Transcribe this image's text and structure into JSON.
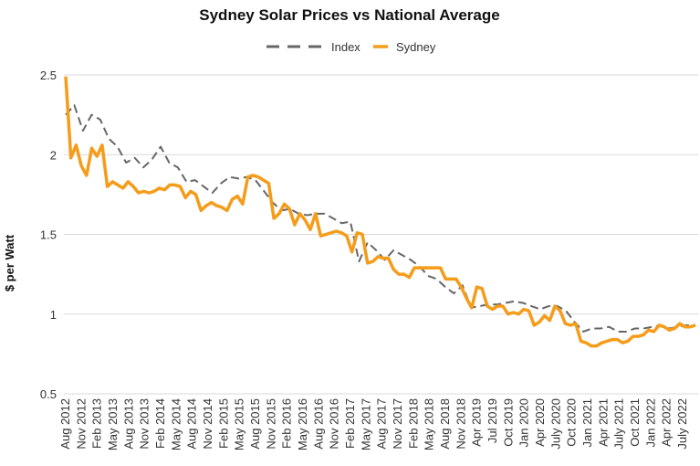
{
  "chart_data": {
    "type": "line",
    "title": "Sydney Solar Prices vs National Average",
    "xlabel": "",
    "ylabel": "$ per Watt",
    "ylim": [
      0.5,
      2.5
    ],
    "yticks": [
      "0.5",
      "1",
      "1.5",
      "2",
      "2.5"
    ],
    "grid": true,
    "legend_position": "top-center",
    "x_ticks": [
      "Aug 2012",
      "Nov 2012",
      "Feb 2013",
      "May 2013",
      "Aug 2013",
      "Nov 2013",
      "Feb 2014",
      "May 2014",
      "Aug 2014",
      "Nov 2014",
      "Feb 2015",
      "May 2015",
      "Aug 2015",
      "Nov 2015",
      "Feb 2016",
      "May 2016",
      "Aug 2016",
      "Nov 2016",
      "Feb 2017",
      "May 2017",
      "Aug 2017",
      "Nov 2017",
      "Feb 2018",
      "May 2018",
      "Aug 2018",
      "Nov 2018",
      "Apr 2019",
      "Jul 2019",
      "Oct 2019",
      "Jan 2020",
      "Apr 2020",
      "July 2020",
      "Oct 2020",
      "Jan 2021",
      "Apr 2021",
      "July 2021",
      "Oct 2021",
      "Jan 2022",
      "Apr 2022",
      "July 2022"
    ],
    "series": [
      {
        "name": "Index",
        "color": "#666666",
        "style": "dashed",
        "values": [
          2.25,
          2.31,
          2.15,
          2.25,
          2.22,
          2.1,
          2.05,
          1.95,
          1.98,
          1.92,
          1.97,
          2.05,
          1.95,
          1.92,
          1.83,
          1.84,
          1.8,
          1.76,
          1.82,
          1.86,
          1.85,
          1.86,
          1.84,
          1.77,
          1.7,
          1.65,
          1.66,
          1.63,
          1.62,
          1.63,
          1.63,
          1.6,
          1.57,
          1.58,
          1.33,
          1.45,
          1.4,
          1.34,
          1.4,
          1.37,
          1.34,
          1.3,
          1.24,
          1.22,
          1.17,
          1.13,
          1.18,
          1.04,
          1.05,
          1.06,
          1.06,
          1.07,
          1.08,
          1.07,
          1.05,
          1.03,
          1.05,
          1.05,
          1.02,
          0.95,
          0.89,
          0.91,
          0.91,
          0.92,
          0.89,
          0.89,
          0.91,
          0.91,
          0.92,
          0.93,
          0.91,
          0.92,
          0.93,
          0.93
        ]
      },
      {
        "name": "Sydney",
        "color": "#f59c1a",
        "style": "solid",
        "values": [
          2.49,
          1.98,
          2.06,
          1.93,
          1.87,
          2.04,
          1.99,
          2.06,
          1.8,
          1.83,
          1.81,
          1.79,
          1.83,
          1.8,
          1.76,
          1.77,
          1.76,
          1.77,
          1.79,
          1.78,
          1.81,
          1.81,
          1.8,
          1.73,
          1.77,
          1.75,
          1.65,
          1.68,
          1.7,
          1.68,
          1.67,
          1.65,
          1.72,
          1.74,
          1.69,
          1.86,
          1.87,
          1.86,
          1.84,
          1.82,
          1.6,
          1.63,
          1.69,
          1.66,
          1.56,
          1.63,
          1.59,
          1.53,
          1.63,
          1.49,
          1.5,
          1.51,
          1.52,
          1.51,
          1.49,
          1.39,
          1.51,
          1.5,
          1.32,
          1.33,
          1.36,
          1.35,
          1.35,
          1.28,
          1.25,
          1.25,
          1.23,
          1.29,
          1.29,
          1.29,
          1.29,
          1.29,
          1.29,
          1.22,
          1.22,
          1.22,
          1.17,
          1.1,
          1.04,
          1.17,
          1.16,
          1.05,
          1.03,
          1.05,
          1.05,
          1.0,
          1.01,
          1.0,
          1.03,
          1.02,
          0.93,
          0.95,
          0.99,
          0.96,
          1.05,
          1.02,
          0.94,
          0.93,
          0.94,
          0.83,
          0.82,
          0.8,
          0.8,
          0.82,
          0.83,
          0.84,
          0.84,
          0.82,
          0.83,
          0.86,
          0.86,
          0.87,
          0.9,
          0.89,
          0.93,
          0.92,
          0.9,
          0.91,
          0.94,
          0.92,
          0.92,
          0.93
        ]
      }
    ]
  }
}
